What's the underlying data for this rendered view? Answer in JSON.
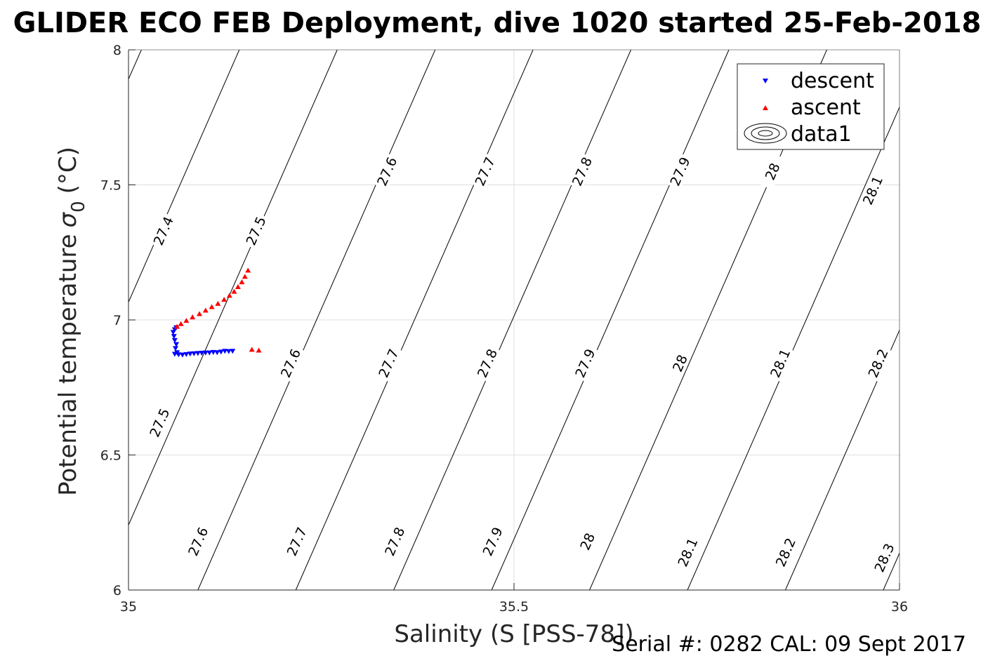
{
  "chart_data": {
    "type": "scatter",
    "title": "GLIDER ECO FEB Deployment, dive 1020 started 25-Feb-2018",
    "xlabel": "Salinity (S [PSS-78])",
    "ylabel": "Potential temperature",
    "ylabel_symbol": "σ",
    "ylabel_subscript": "0",
    "ylabel_unit": "(°C)",
    "xlim": [
      35,
      36
    ],
    "ylim": [
      6,
      8
    ],
    "xticks": [
      "35",
      "35.5",
      "36"
    ],
    "yticks": [
      "6",
      "6.5",
      "7",
      "7.5",
      "8"
    ],
    "grid": true,
    "legend_position": "top-right",
    "footer": "Serial #: 0282  CAL: 09 Sept 2017",
    "series": [
      {
        "name": "descent",
        "marker": "triangle-down",
        "color": "#0000ff",
        "points": [
          [
            35.135,
            6.885
          ],
          [
            35.13,
            6.884
          ],
          [
            35.125,
            6.885
          ],
          [
            35.12,
            6.882
          ],
          [
            35.115,
            6.88
          ],
          [
            35.11,
            6.881
          ],
          [
            35.105,
            6.879
          ],
          [
            35.1,
            6.879
          ],
          [
            35.095,
            6.878
          ],
          [
            35.09,
            6.877
          ],
          [
            35.085,
            6.876
          ],
          [
            35.08,
            6.875
          ],
          [
            35.075,
            6.873
          ],
          [
            35.07,
            6.871
          ],
          [
            35.065,
            6.872
          ],
          [
            35.06,
            6.874
          ],
          [
            35.063,
            6.88
          ],
          [
            35.061,
            6.895
          ],
          [
            35.062,
            6.91
          ],
          [
            35.06,
            6.925
          ],
          [
            35.059,
            6.94
          ],
          [
            35.058,
            6.955
          ],
          [
            35.06,
            6.965
          ],
          [
            35.062,
            6.972
          ]
        ]
      },
      {
        "name": "ascent",
        "marker": "triangle-up",
        "color": "#ff0000",
        "points": [
          [
            35.063,
            6.975
          ],
          [
            35.068,
            6.985
          ],
          [
            35.075,
            6.997
          ],
          [
            35.083,
            7.01
          ],
          [
            35.092,
            7.022
          ],
          [
            35.1,
            7.035
          ],
          [
            35.108,
            7.048
          ],
          [
            35.116,
            7.06
          ],
          [
            35.124,
            7.075
          ],
          [
            35.131,
            7.09
          ],
          [
            35.137,
            7.105
          ],
          [
            35.142,
            7.122
          ],
          [
            35.147,
            7.14
          ],
          [
            35.151,
            7.16
          ],
          [
            35.155,
            7.183
          ],
          [
            35.16,
            6.89
          ],
          [
            35.169,
            6.887
          ]
        ]
      },
      {
        "name": "data1",
        "type": "contour",
        "color": "#000000",
        "levels": [
          27.3,
          27.4,
          27.5,
          27.6,
          27.7,
          27.8,
          27.9,
          28.0,
          28.1,
          28.2,
          28.3
        ],
        "labels": [
          {
            "text": "27.4",
            "s": 35.045,
            "t": 7.33
          },
          {
            "text": "27.5",
            "s": 35.165,
            "t": 7.33
          },
          {
            "text": "27.6",
            "s": 35.335,
            "t": 7.55
          },
          {
            "text": "27.7",
            "s": 35.462,
            "t": 7.55
          },
          {
            "text": "27.8",
            "s": 35.588,
            "t": 7.55
          },
          {
            "text": "27.9",
            "s": 35.715,
            "t": 7.55
          },
          {
            "text": "28",
            "s": 35.835,
            "t": 7.55
          },
          {
            "text": "28.1",
            "s": 35.965,
            "t": 7.48
          },
          {
            "text": "27.6",
            "s": 35.21,
            "t": 6.84
          },
          {
            "text": "27.7",
            "s": 35.337,
            "t": 6.84
          },
          {
            "text": "27.8",
            "s": 35.465,
            "t": 6.84
          },
          {
            "text": "27.9",
            "s": 35.592,
            "t": 6.84
          },
          {
            "text": "28",
            "s": 35.715,
            "t": 6.84
          },
          {
            "text": "28.1",
            "s": 35.845,
            "t": 6.84
          },
          {
            "text": "28.2",
            "s": 35.972,
            "t": 6.84
          },
          {
            "text": "27.5",
            "s": 35.04,
            "t": 6.62
          },
          {
            "text": "27.6",
            "s": 35.09,
            "t": 6.18
          },
          {
            "text": "27.7",
            "s": 35.218,
            "t": 6.18
          },
          {
            "text": "27.8",
            "s": 35.345,
            "t": 6.18
          },
          {
            "text": "27.9",
            "s": 35.472,
            "t": 6.18
          },
          {
            "text": "28",
            "s": 35.595,
            "t": 6.18
          },
          {
            "text": "28.1",
            "s": 35.725,
            "t": 6.14
          },
          {
            "text": "28.2",
            "s": 35.852,
            "t": 6.14
          },
          {
            "text": "28.3",
            "s": 35.98,
            "t": 6.12
          }
        ]
      }
    ]
  }
}
